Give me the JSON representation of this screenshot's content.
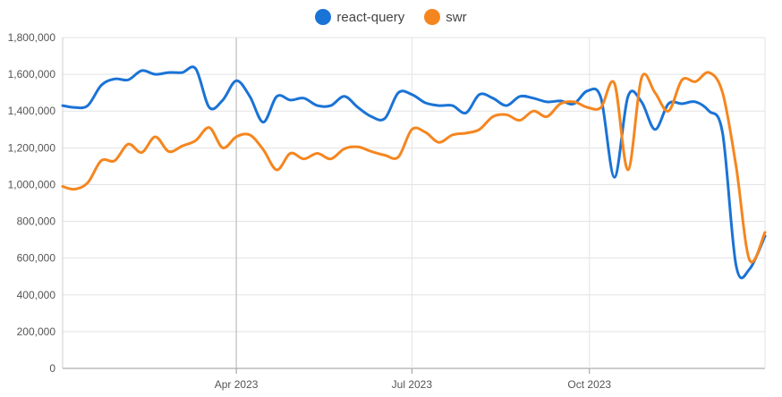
{
  "chart_data": {
    "type": "line",
    "title": "",
    "xlabel": "",
    "ylabel": "",
    "ylim": [
      0,
      1800000
    ],
    "yticks": [
      0,
      200000,
      400000,
      600000,
      800000,
      1000000,
      1200000,
      1400000,
      1600000,
      1800000
    ],
    "ytick_labels": [
      "0",
      "200,000",
      "400,000",
      "600,000",
      "800,000",
      "1,000,000",
      "1,200,000",
      "1,400,000",
      "1,600,000",
      "1,800,000"
    ],
    "xlim": [
      "2023-01-01",
      "2023-12-31"
    ],
    "xticks": [
      "2023-04-01",
      "2023-07-01",
      "2023-10-01"
    ],
    "xtick_labels": [
      "Apr 2023",
      "Jul 2023",
      "Oct 2023"
    ],
    "legend_position": "top-center",
    "grid": true,
    "series": [
      {
        "name": "react-query",
        "color": "#1a73d6",
        "x": [
          "2023-01-01",
          "2023-01-07",
          "2023-01-14",
          "2023-01-21",
          "2023-01-28",
          "2023-02-04",
          "2023-02-11",
          "2023-02-18",
          "2023-02-25",
          "2023-03-04",
          "2023-03-11",
          "2023-03-18",
          "2023-03-25",
          "2023-04-01",
          "2023-04-08",
          "2023-04-15",
          "2023-04-22",
          "2023-04-29",
          "2023-05-06",
          "2023-05-13",
          "2023-05-20",
          "2023-05-27",
          "2023-06-03",
          "2023-06-10",
          "2023-06-17",
          "2023-06-24",
          "2023-07-01",
          "2023-07-08",
          "2023-07-15",
          "2023-07-22",
          "2023-07-29",
          "2023-08-05",
          "2023-08-12",
          "2023-08-19",
          "2023-08-26",
          "2023-09-02",
          "2023-09-09",
          "2023-09-16",
          "2023-09-23",
          "2023-09-30",
          "2023-10-07",
          "2023-10-14",
          "2023-10-21",
          "2023-10-28",
          "2023-11-04",
          "2023-11-11",
          "2023-11-18",
          "2023-11-25",
          "2023-12-02",
          "2023-12-09",
          "2023-12-16",
          "2023-12-23",
          "2023-12-31"
        ],
        "values": [
          1430000,
          1420000,
          1430000,
          1540000,
          1575000,
          1570000,
          1620000,
          1600000,
          1610000,
          1610000,
          1630000,
          1420000,
          1460000,
          1565000,
          1480000,
          1340000,
          1480000,
          1460000,
          1470000,
          1430000,
          1430000,
          1480000,
          1420000,
          1370000,
          1360000,
          1500000,
          1490000,
          1445000,
          1430000,
          1430000,
          1390000,
          1490000,
          1470000,
          1430000,
          1480000,
          1470000,
          1450000,
          1455000,
          1440000,
          1510000,
          1470000,
          1040000,
          1480000,
          1450000,
          1300000,
          1440000,
          1440000,
          1450000,
          1400000,
          1280000,
          560000,
          540000,
          720000
        ]
      },
      {
        "name": "swr",
        "color": "#f5861f",
        "x": [
          "2023-01-01",
          "2023-01-07",
          "2023-01-14",
          "2023-01-21",
          "2023-01-28",
          "2023-02-04",
          "2023-02-11",
          "2023-02-18",
          "2023-02-25",
          "2023-03-04",
          "2023-03-11",
          "2023-03-18",
          "2023-03-25",
          "2023-04-01",
          "2023-04-08",
          "2023-04-15",
          "2023-04-22",
          "2023-04-29",
          "2023-05-06",
          "2023-05-13",
          "2023-05-20",
          "2023-05-27",
          "2023-06-03",
          "2023-06-10",
          "2023-06-17",
          "2023-06-24",
          "2023-07-01",
          "2023-07-08",
          "2023-07-15",
          "2023-07-22",
          "2023-07-29",
          "2023-08-05",
          "2023-08-12",
          "2023-08-19",
          "2023-08-26",
          "2023-09-02",
          "2023-09-09",
          "2023-09-16",
          "2023-09-23",
          "2023-09-30",
          "2023-10-07",
          "2023-10-14",
          "2023-10-21",
          "2023-10-28",
          "2023-11-04",
          "2023-11-11",
          "2023-11-18",
          "2023-11-25",
          "2023-12-02",
          "2023-12-09",
          "2023-12-16",
          "2023-12-23",
          "2023-12-31"
        ],
        "values": [
          990000,
          975000,
          1010000,
          1130000,
          1130000,
          1220000,
          1175000,
          1260000,
          1180000,
          1210000,
          1240000,
          1310000,
          1200000,
          1260000,
          1270000,
          1190000,
          1080000,
          1170000,
          1140000,
          1170000,
          1140000,
          1195000,
          1205000,
          1180000,
          1160000,
          1150000,
          1300000,
          1285000,
          1230000,
          1270000,
          1280000,
          1300000,
          1370000,
          1380000,
          1350000,
          1400000,
          1370000,
          1440000,
          1450000,
          1420000,
          1420000,
          1550000,
          1080000,
          1580000,
          1500000,
          1400000,
          1570000,
          1560000,
          1610000,
          1500000,
          1100000,
          590000,
          740000
        ]
      }
    ]
  }
}
